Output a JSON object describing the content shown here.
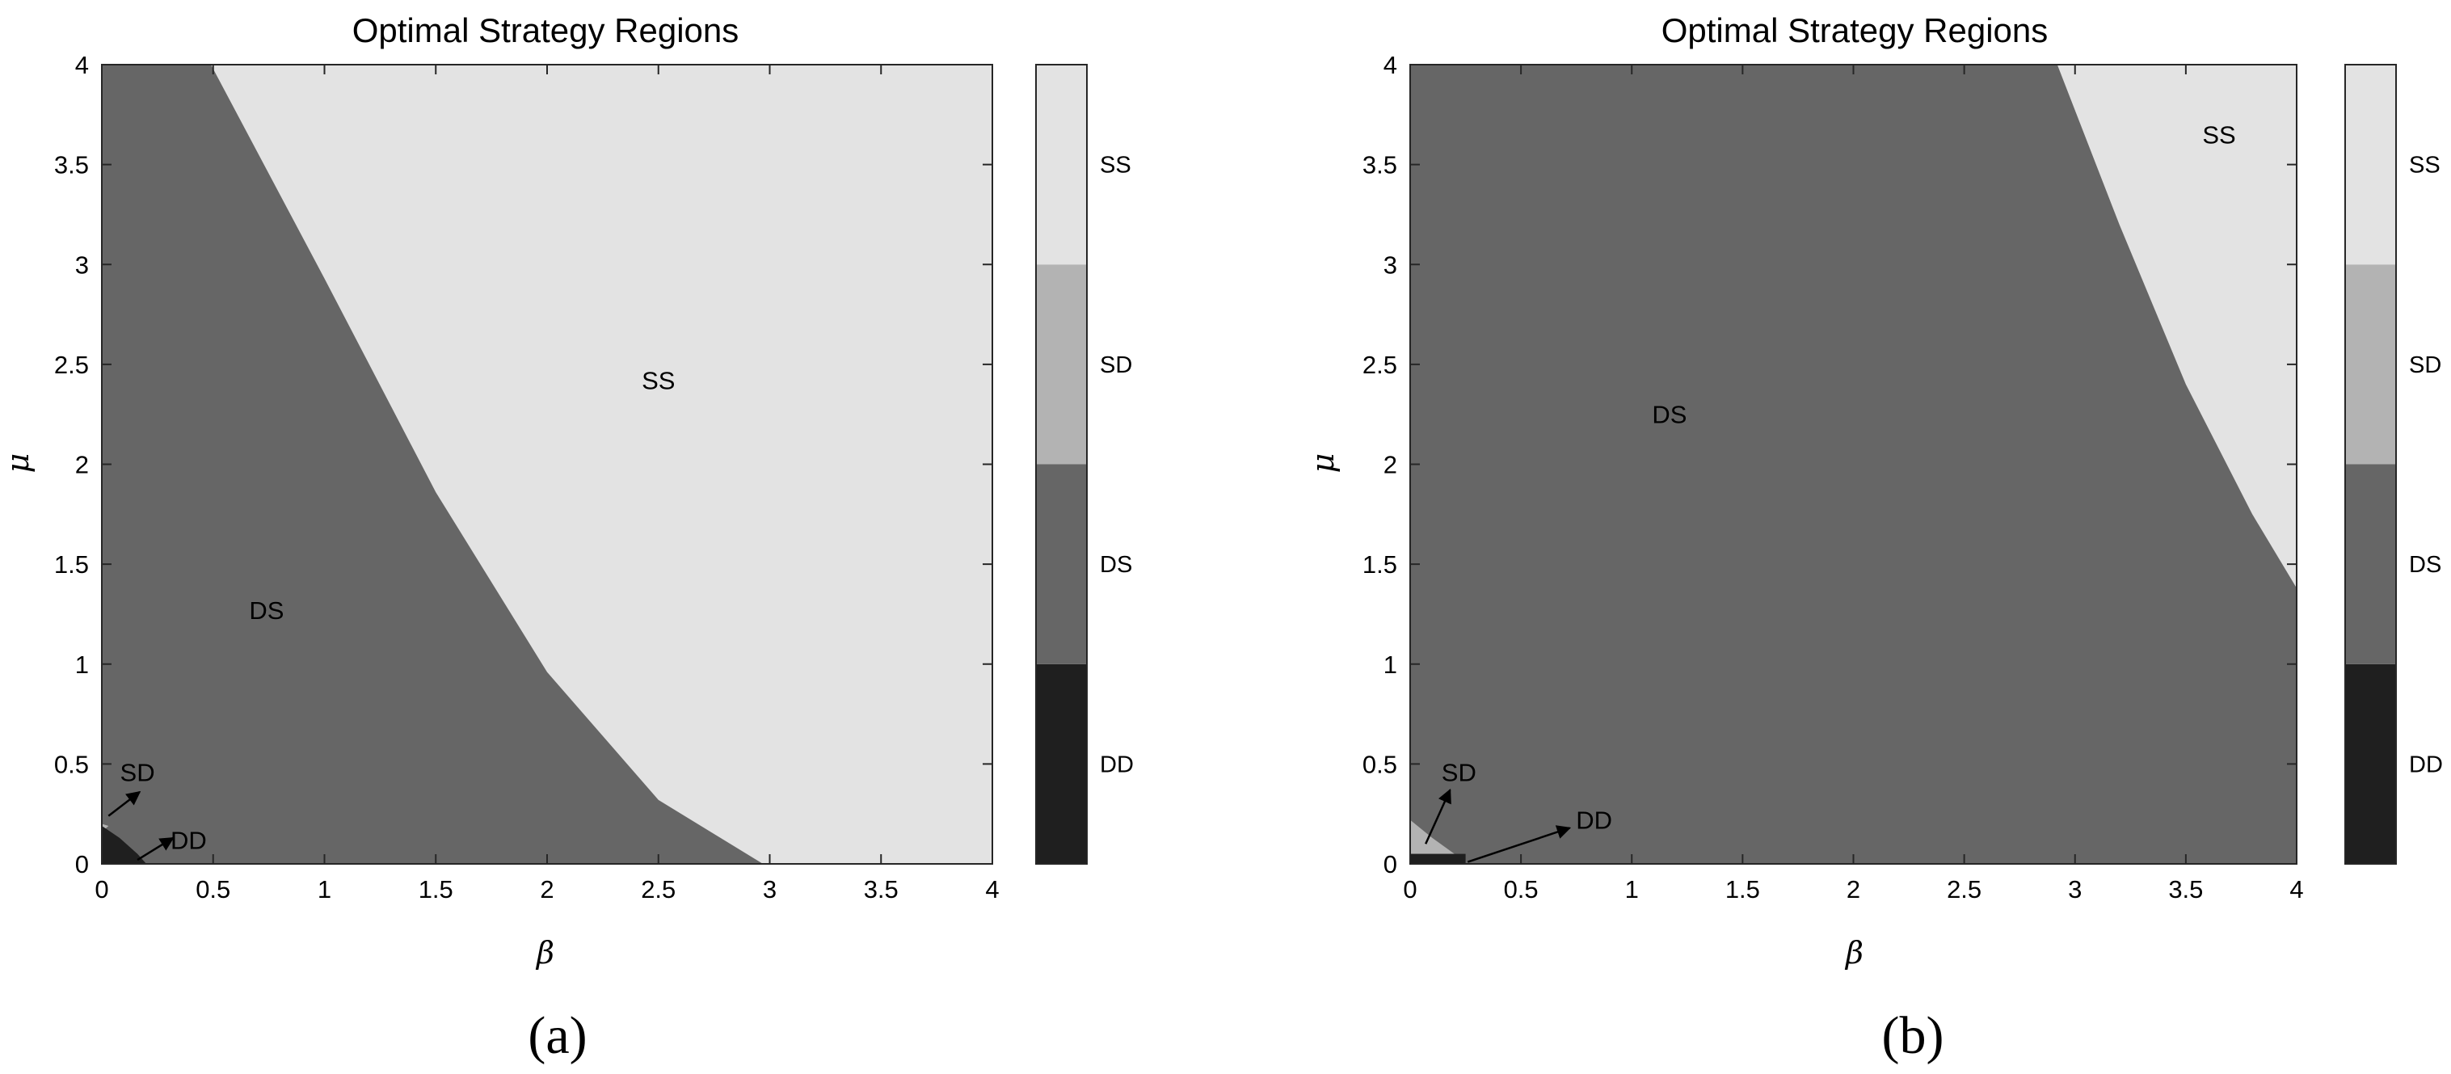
{
  "chart_data": [
    {
      "type": "heatmap",
      "title": "Optimal Strategy Regions",
      "xlabel": "β",
      "ylabel": "μ",
      "xlim": [
        0,
        4
      ],
      "ylim": [
        0,
        4
      ],
      "xticks": [
        "0",
        "0.5",
        "1",
        "1.5",
        "2",
        "2.5",
        "3",
        "3.5",
        "4"
      ],
      "yticks": [
        "0",
        "0.5",
        "1",
        "1.5",
        "2",
        "2.5",
        "3",
        "3.5",
        "4"
      ],
      "grid": false,
      "colorbar": {
        "levels": [
          "DD",
          "DS",
          "SD",
          "SS"
        ],
        "colors": [
          "#1f1f1f",
          "#666666",
          "#b3b3b3",
          "#e3e3e3"
        ]
      },
      "background_region": "DS",
      "regions": [
        {
          "name": "SS",
          "boundary": [
            [
              0.49,
              4.0
            ],
            [
              1.0,
              2.93
            ],
            [
              1.5,
              1.86
            ],
            [
              2.0,
              0.96
            ],
            [
              2.5,
              0.32
            ],
            [
              2.97,
              0.0
            ],
            [
              4.0,
              0.0
            ],
            [
              4.0,
              4.0
            ]
          ]
        },
        {
          "name": "SD",
          "boundary": [
            [
              0.0,
              0.2
            ],
            [
              0.03,
              0.19
            ],
            [
              0.0,
              0.16
            ]
          ]
        },
        {
          "name": "DD",
          "boundary": [
            [
              0.0,
              0.0
            ],
            [
              0.2,
              0.0
            ],
            [
              0.16,
              0.05
            ],
            [
              0.08,
              0.13
            ],
            [
              0.0,
              0.19
            ]
          ]
        }
      ],
      "annotations": [
        {
          "text": "SS",
          "x": 2.5,
          "y": 2.42
        },
        {
          "text": "DS",
          "x": 0.74,
          "y": 1.27
        },
        {
          "text": "SD",
          "x": 0.16,
          "y": 0.46,
          "arrow_to": [
            0.17,
            0.36
          ],
          "arrow_from": [
            0.03,
            0.24
          ]
        },
        {
          "text": "DD",
          "x": 0.39,
          "y": 0.12,
          "arrow_to": [
            0.32,
            0.13
          ],
          "arrow_from": [
            0.16,
            0.02
          ]
        }
      ],
      "panel_label": "(a)"
    },
    {
      "type": "heatmap",
      "title": "Optimal Strategy Regions",
      "xlabel": "β",
      "ylabel": "μ",
      "xlim": [
        0,
        4
      ],
      "ylim": [
        0,
        4
      ],
      "xticks": [
        "0",
        "0.5",
        "1",
        "1.5",
        "2",
        "2.5",
        "3",
        "3.5",
        "4"
      ],
      "yticks": [
        "0",
        "0.5",
        "1",
        "1.5",
        "2",
        "2.5",
        "3",
        "3.5",
        "4"
      ],
      "grid": false,
      "colorbar": {
        "levels": [
          "DD",
          "DS",
          "SD",
          "SS"
        ],
        "colors": [
          "#1f1f1f",
          "#666666",
          "#b3b3b3",
          "#e3e3e3"
        ]
      },
      "background_region": "DS",
      "regions": [
        {
          "name": "SS",
          "boundary": [
            [
              2.92,
              4.0
            ],
            [
              3.2,
              3.2
            ],
            [
              3.5,
              2.4
            ],
            [
              3.8,
              1.75
            ],
            [
              4.0,
              1.38
            ],
            [
              4.0,
              4.0
            ]
          ]
        },
        {
          "name": "SD",
          "boundary": [
            [
              0.0,
              0.22
            ],
            [
              0.1,
              0.13
            ],
            [
              0.2,
              0.05
            ],
            [
              0.0,
              0.05
            ]
          ]
        },
        {
          "name": "DD",
          "boundary": [
            [
              0.0,
              0.0
            ],
            [
              0.25,
              0.0
            ],
            [
              0.25,
              0.05
            ],
            [
              0.0,
              0.05
            ]
          ]
        }
      ],
      "annotations": [
        {
          "text": "SS",
          "x": 3.65,
          "y": 3.65
        },
        {
          "text": "DS",
          "x": 1.17,
          "y": 2.25
        },
        {
          "text": "SD",
          "x": 0.22,
          "y": 0.46,
          "arrow_to": [
            0.18,
            0.37
          ],
          "arrow_from": [
            0.07,
            0.1
          ]
        },
        {
          "text": "DD",
          "x": 0.83,
          "y": 0.22,
          "arrow_to": [
            0.72,
            0.18
          ],
          "arrow_from": [
            0.26,
            0.01
          ]
        }
      ],
      "panel_label": "(b)"
    }
  ]
}
